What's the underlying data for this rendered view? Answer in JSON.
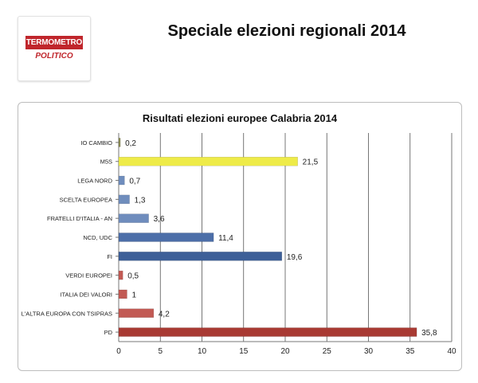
{
  "header": {
    "title": "Speciale elezioni regionali 2014",
    "logo_line1": "TERMOMETRO",
    "logo_line2": "POLITICO"
  },
  "chart_data": {
    "type": "bar",
    "orientation": "horizontal",
    "title": "Risultati elezioni europee Calabria 2014",
    "xlabel": "",
    "ylabel": "",
    "xlim": [
      0,
      40
    ],
    "x_ticks": [
      "0",
      "5",
      "10",
      "15",
      "20",
      "25",
      "30",
      "35",
      "40"
    ],
    "grid": true,
    "categories": [
      "IO CAMBIO",
      "M5S",
      "LEGA NORD",
      "SCELTA EUROPEA",
      "FRATELLI D'ITALIA - AN",
      "NCD, UDC",
      "FI",
      "VERDI EUROPEI",
      "ITALIA DEI VALORI",
      "L'ALTRA EUROPA CON TSIPRAS",
      "PD"
    ],
    "values": [
      0.2,
      21.5,
      0.7,
      1.3,
      3.6,
      11.4,
      19.6,
      0.5,
      1,
      4.2,
      35.8
    ],
    "value_labels": [
      "0,2",
      "21,5",
      "0,7",
      "1,3",
      "3,6",
      "11,4",
      "19,6",
      "0,5",
      "1",
      "4,2",
      "35,8"
    ],
    "colors": [
      "#8c8c55",
      "#eeeb48",
      "#6f8dbd",
      "#6f8dbd",
      "#6f8dbd",
      "#4c6ea8",
      "#3d5f98",
      "#c25a54",
      "#c25a54",
      "#c25a54",
      "#a83a33"
    ]
  }
}
